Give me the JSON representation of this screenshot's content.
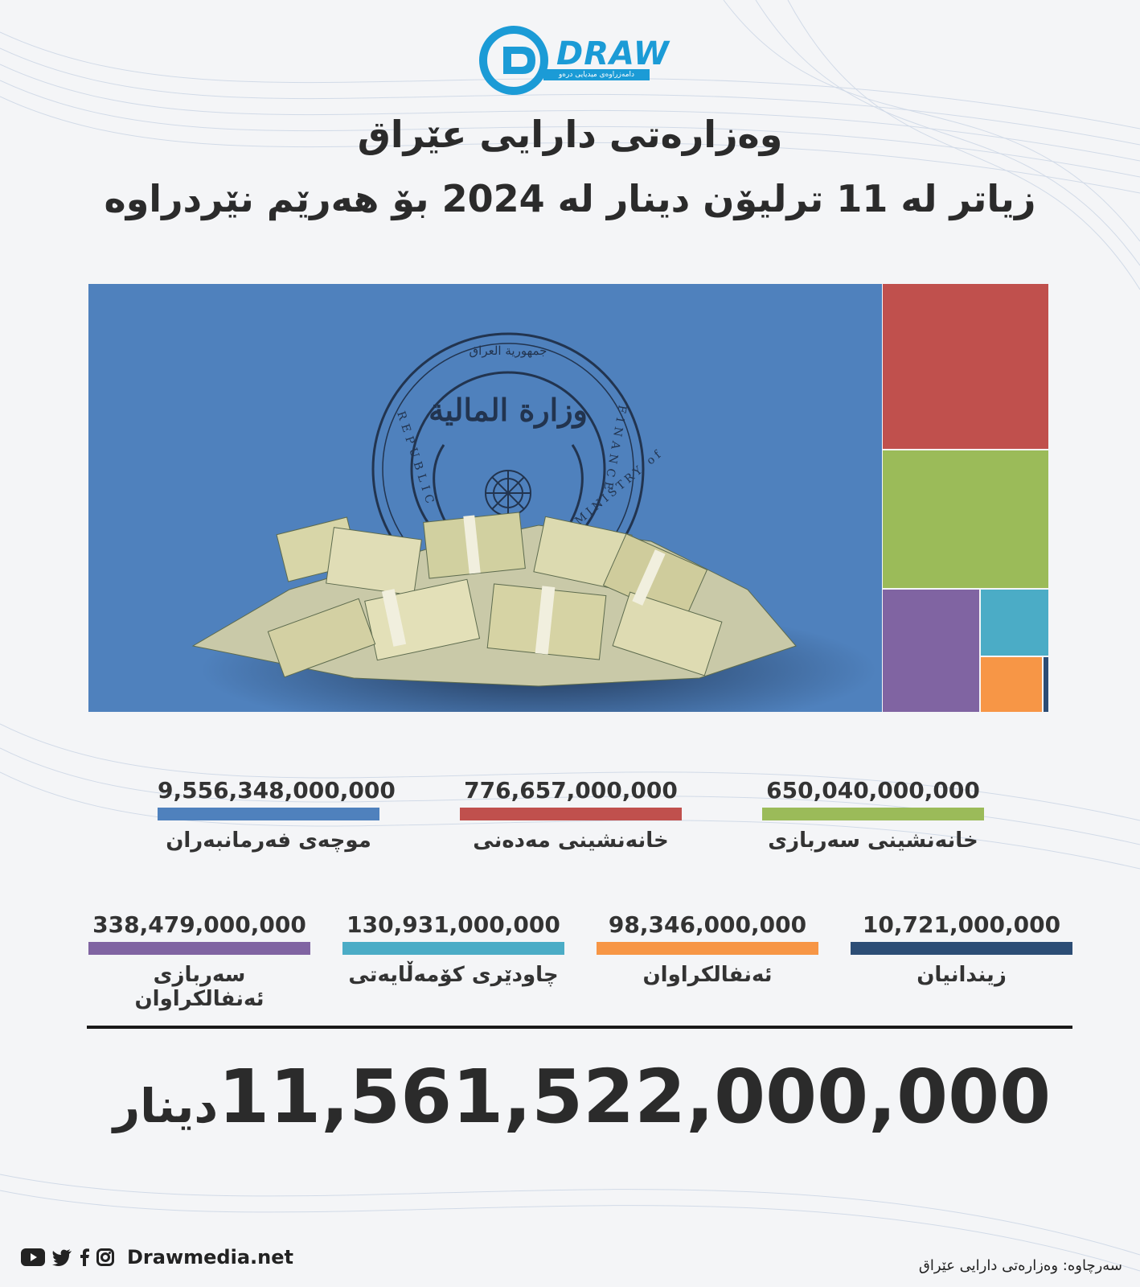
{
  "brand": {
    "logo_text": "DRAW",
    "logo_tagline": "دامەزراوەی میدیایی درەو",
    "color": "#1b9bd6"
  },
  "title": {
    "line1": "وەزارەتی دارایی عێراق",
    "line2": "زیاتر لە 11 ترلیۆن دینار لە 2024 بۆ هەرێم نێردراوە"
  },
  "hero": {
    "background_color": "#4f81bd",
    "seal_text_top": "جمهورية العراق",
    "seal_text_left": "REPUBLIC",
    "seal_text_right": "FINANCE",
    "seal_text_bottom": "MINISTRY of",
    "seal_center": "وزارة المالية"
  },
  "chart_data": {
    "type": "treemap",
    "items": [
      {
        "label": "موچەی فەرمانبەران",
        "value": 9556348000000,
        "display": "9,556,348,000,000",
        "color": "#4f81bd"
      },
      {
        "label": "خانەنشینی مەدەنی",
        "value": 776657000000,
        "display": "776,657,000,000",
        "color": "#c0504d"
      },
      {
        "label": "خانەنشینی سەربازی",
        "value": 650040000000,
        "display": "650,040,000,000",
        "color": "#9bbb59"
      },
      {
        "label": "سەربازی ئەنفالکراوان",
        "value": 338479000000,
        "display": "338,479,000,000",
        "color": "#8064a2"
      },
      {
        "label": "چاودێری کۆمەڵایەتی",
        "value": 130931000000,
        "display": "130,931,000,000",
        "color": "#4bacc6"
      },
      {
        "label": "ئەنفالکراوان",
        "value": 98346000000,
        "display": "98,346,000,000",
        "color": "#f79646"
      },
      {
        "label": "زیندانیان",
        "value": 10721000000,
        "display": "10,721,000,000",
        "color": "#2c4d75"
      }
    ]
  },
  "total": {
    "value": "11,561,522,000,000",
    "unit": "دینار"
  },
  "footer": {
    "site": "Drawmedia.net",
    "icons": [
      "youtube-icon",
      "twitter-icon",
      "facebook-icon",
      "instagram-icon"
    ],
    "source": "سەرچاوە: وەزارەتی دارایی عێراق"
  }
}
